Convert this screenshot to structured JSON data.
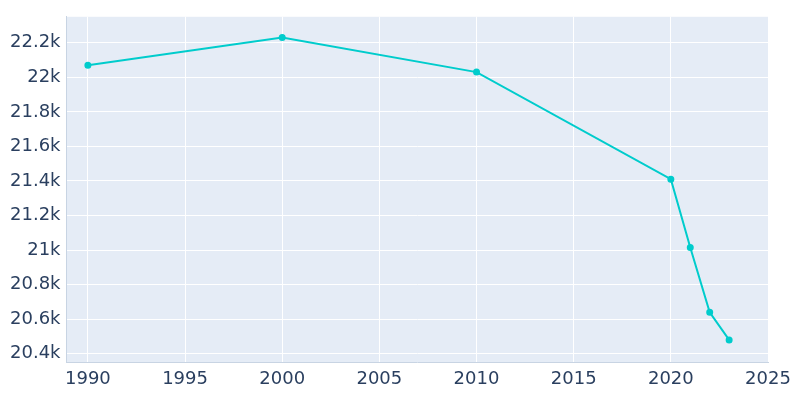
{
  "chart_data": {
    "type": "line",
    "color": "#00cccc",
    "marker": "circle",
    "grid": true,
    "x": [
      1990,
      2000,
      2010,
      2020,
      2021,
      2022,
      2023
    ],
    "values": [
      22070,
      22230,
      22030,
      21410,
      21015,
      20640,
      20480
    ],
    "xlim": [
      1988.9,
      2025
    ],
    "xticks": [
      1990,
      1995,
      2000,
      2005,
      2010,
      2015,
      2020,
      2025
    ],
    "ylim": [
      20350,
      22350
    ],
    "yticks": [
      {
        "value": 20400,
        "label": "20.4k"
      },
      {
        "value": 20600,
        "label": "20.6k"
      },
      {
        "value": 20800,
        "label": "20.8k"
      },
      {
        "value": 21000,
        "label": "21k"
      },
      {
        "value": 21200,
        "label": "21.2k"
      },
      {
        "value": 21400,
        "label": "21.4k"
      },
      {
        "value": 21600,
        "label": "21.6k"
      },
      {
        "value": 21800,
        "label": "21.8k"
      },
      {
        "value": 22000,
        "label": "22k"
      },
      {
        "value": 22200,
        "label": "22.2k"
      }
    ]
  }
}
